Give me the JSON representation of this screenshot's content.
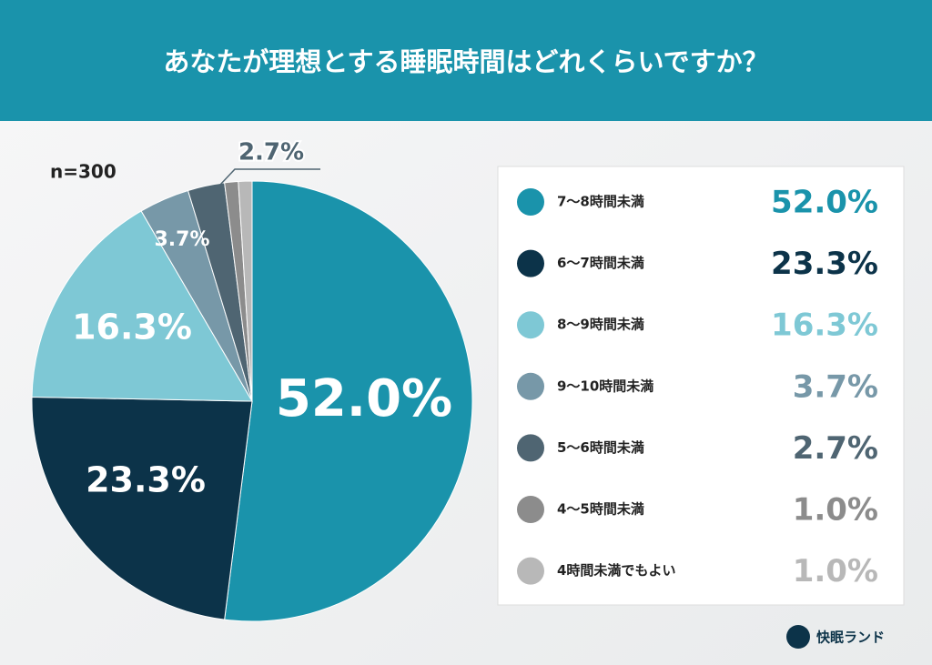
{
  "chart_data": {
    "type": "pie",
    "title": "あなたが理想とする睡眠時間はどれくらいですか？",
    "note": "n=300",
    "categories": [
      "7〜8時間未満",
      "6〜7時間未満",
      "8〜9時間未満",
      "9〜10時間未満",
      "5〜6時間未満",
      "4〜5時間未満",
      "4時間未満でもよい"
    ],
    "values": [
      52.0,
      23.3,
      16.3,
      3.7,
      2.7,
      1.0,
      1.0
    ],
    "value_labels": [
      "52.0%",
      "23.3%",
      "16.3%",
      "3.7%",
      "2.7%",
      "1.0%",
      "1.0%"
    ],
    "colors": [
      "#1a93ab",
      "#0c3349",
      "#7ec8d5",
      "#7798a8",
      "#4f6572",
      "#8c8c8c",
      "#b8b8b8"
    ],
    "brand": "快眠ランド"
  }
}
